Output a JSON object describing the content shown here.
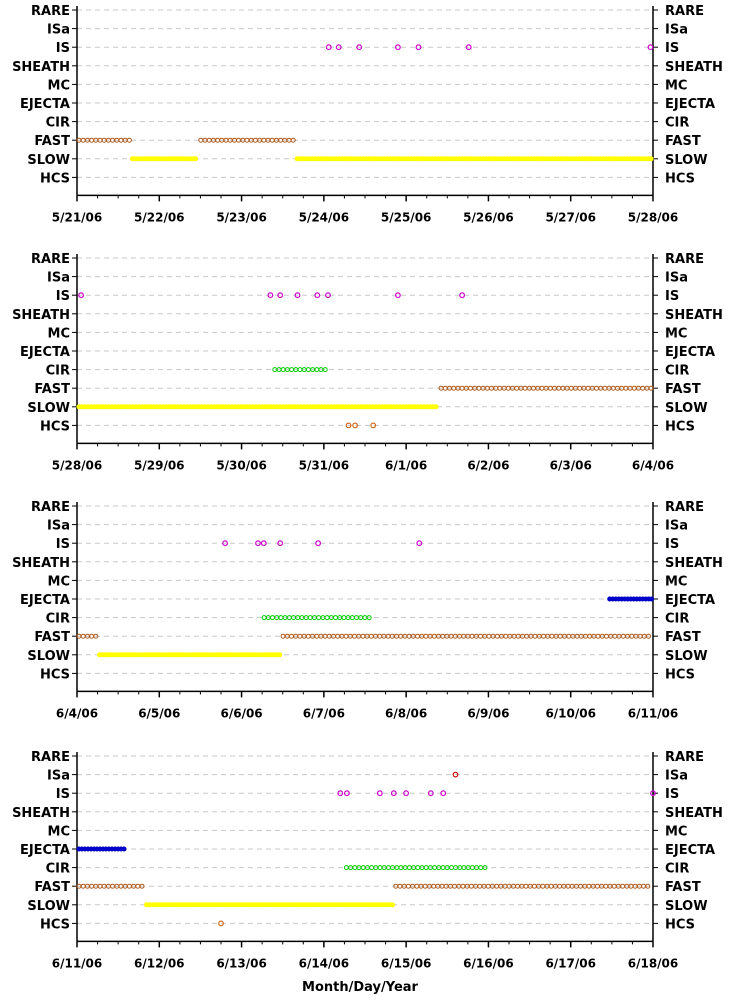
{
  "x_axis_title": "Month/Day/Year",
  "categories": [
    "RARE",
    "ISa",
    "IS",
    "SHEATH",
    "MC",
    "EJECTA",
    "CIR",
    "FAST",
    "SLOW",
    "HCS"
  ],
  "colors": {
    "IS": "#cc00cc",
    "ISa": "#cc0000",
    "CIR": "#00cc00",
    "FAST": "#b05a1a",
    "SLOW": "#ffff00",
    "EJECTA": "#0000cc",
    "HCS": "#d2691e",
    "grid": "#c8c8c8",
    "axis": "#000000"
  },
  "chart_data": [
    {
      "type": "scatter",
      "panel": 1,
      "x_range_days": [
        0,
        7
      ],
      "x_tick_labels": [
        "5/21/06",
        "5/22/06",
        "5/23/06",
        "5/24/06",
        "5/25/06",
        "5/26/06",
        "5/27/06",
        "5/28/06"
      ],
      "categories": [
        "RARE",
        "ISa",
        "IS",
        "SHEATH",
        "MC",
        "EJECTA",
        "CIR",
        "FAST",
        "SLOW",
        "HCS"
      ],
      "segments": [
        {
          "category": "FAST",
          "start": 0.0,
          "end": 0.65
        },
        {
          "category": "SLOW",
          "start": 0.65,
          "end": 1.48
        },
        {
          "category": "FAST",
          "start": 1.48,
          "end": 2.65
        },
        {
          "category": "SLOW",
          "start": 2.65,
          "end": 7.0
        }
      ],
      "points": [
        {
          "category": "IS",
          "x": 3.06
        },
        {
          "category": "IS",
          "x": 3.18
        },
        {
          "category": "IS",
          "x": 3.43
        },
        {
          "category": "IS",
          "x": 3.9
        },
        {
          "category": "IS",
          "x": 4.15
        },
        {
          "category": "IS",
          "x": 4.76
        },
        {
          "category": "IS",
          "x": 6.97
        }
      ]
    },
    {
      "type": "scatter",
      "panel": 2,
      "x_range_days": [
        0,
        7
      ],
      "x_tick_labels": [
        "5/28/06",
        "5/29/06",
        "5/30/06",
        "5/31/06",
        "6/1/06",
        "6/2/06",
        "6/3/06",
        "6/4/06"
      ],
      "categories": [
        "RARE",
        "ISa",
        "IS",
        "SHEATH",
        "MC",
        "EJECTA",
        "CIR",
        "FAST",
        "SLOW",
        "HCS"
      ],
      "segments": [
        {
          "category": "SLOW",
          "start": 0.0,
          "end": 4.4
        },
        {
          "category": "FAST",
          "start": 4.4,
          "end": 7.0
        },
        {
          "category": "CIR",
          "start": 2.38,
          "end": 3.05
        }
      ],
      "points": [
        {
          "category": "IS",
          "x": 0.05
        },
        {
          "category": "IS",
          "x": 2.35
        },
        {
          "category": "IS",
          "x": 2.47
        },
        {
          "category": "IS",
          "x": 2.68
        },
        {
          "category": "IS",
          "x": 2.92
        },
        {
          "category": "IS",
          "x": 3.05
        },
        {
          "category": "IS",
          "x": 3.9
        },
        {
          "category": "IS",
          "x": 4.68
        },
        {
          "category": "HCS",
          "x": 3.3
        },
        {
          "category": "HCS",
          "x": 3.38
        },
        {
          "category": "HCS",
          "x": 3.6
        }
      ]
    },
    {
      "type": "scatter",
      "panel": 3,
      "x_range_days": [
        0,
        7
      ],
      "x_tick_labels": [
        "6/4/06",
        "6/5/06",
        "6/6/06",
        "6/7/06",
        "6/8/06",
        "6/9/06",
        "6/10/06",
        "6/11/06"
      ],
      "categories": [
        "RARE",
        "ISa",
        "IS",
        "SHEATH",
        "MC",
        "EJECTA",
        "CIR",
        "FAST",
        "SLOW",
        "HCS"
      ],
      "segments": [
        {
          "category": "FAST",
          "start": 0.0,
          "end": 0.25
        },
        {
          "category": "SLOW",
          "start": 0.25,
          "end": 2.48
        },
        {
          "category": "FAST",
          "start": 2.48,
          "end": 7.0
        },
        {
          "category": "CIR",
          "start": 2.25,
          "end": 3.6
        },
        {
          "category": "EJECTA",
          "start": 6.45,
          "end": 7.0
        }
      ],
      "points": [
        {
          "category": "IS",
          "x": 1.8
        },
        {
          "category": "IS",
          "x": 2.2
        },
        {
          "category": "IS",
          "x": 2.27
        },
        {
          "category": "IS",
          "x": 2.47
        },
        {
          "category": "IS",
          "x": 2.93
        },
        {
          "category": "IS",
          "x": 4.16
        }
      ]
    },
    {
      "type": "scatter",
      "panel": 4,
      "x_range_days": [
        0,
        7
      ],
      "x_tick_labels": [
        "6/11/06",
        "6/12/06",
        "6/13/06",
        "6/14/06",
        "6/15/06",
        "6/16/06",
        "6/17/06",
        "6/18/06"
      ],
      "categories": [
        "RARE",
        "ISa",
        "IS",
        "SHEATH",
        "MC",
        "EJECTA",
        "CIR",
        "FAST",
        "SLOW",
        "HCS"
      ],
      "segments": [
        {
          "category": "EJECTA",
          "start": 0.0,
          "end": 0.6
        },
        {
          "category": "FAST",
          "start": 0.0,
          "end": 0.82
        },
        {
          "category": "SLOW",
          "start": 0.82,
          "end": 3.85
        },
        {
          "category": "FAST",
          "start": 3.85,
          "end": 7.0
        },
        {
          "category": "CIR",
          "start": 3.25,
          "end": 5.0
        }
      ],
      "points": [
        {
          "category": "IS",
          "x": 3.2
        },
        {
          "category": "IS",
          "x": 3.28
        },
        {
          "category": "IS",
          "x": 3.68
        },
        {
          "category": "IS",
          "x": 3.85
        },
        {
          "category": "IS",
          "x": 4.0
        },
        {
          "category": "IS",
          "x": 4.3
        },
        {
          "category": "IS",
          "x": 4.45
        },
        {
          "category": "IS",
          "x": 7.0
        },
        {
          "category": "ISa",
          "x": 4.6
        },
        {
          "category": "HCS",
          "x": 1.75
        }
      ]
    }
  ]
}
